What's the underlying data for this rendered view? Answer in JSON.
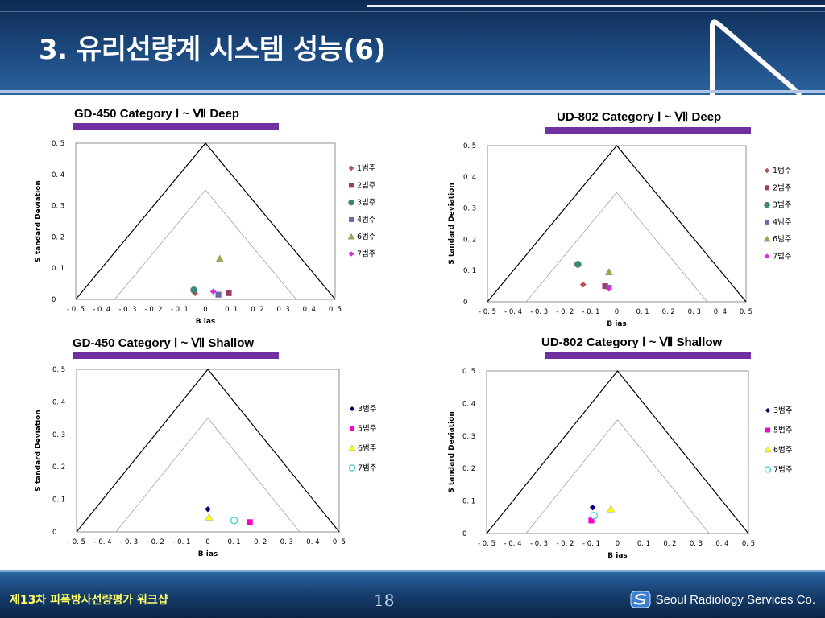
{
  "slide": {
    "title": "3. 유리선량계 시스템 성능(6)",
    "footer_left": "제13차 피폭방사선량평가 워크샵",
    "page_number": "18",
    "company": "Seoul Radiology Services Co."
  },
  "colors": {
    "header": "#1c4a80",
    "accent_bar": "#7030a0",
    "footer_text": "#ffff66"
  },
  "chart_data": [
    {
      "type": "scatter",
      "title": "GD-450 Category Ⅰ ~ Ⅶ Deep",
      "xlabel": "B ias",
      "ylabel": "S tandard Deviation",
      "xlim": [
        -0.5,
        0.5
      ],
      "ylim": [
        0,
        0.5
      ],
      "x_ticks": [
        "- 0. 5",
        "- 0. 4",
        "- 0. 3",
        "- 0. 2",
        "- 0. 1",
        "0",
        "0. 1",
        "0. 2",
        "0. 3",
        "0. 4",
        "0. 5"
      ],
      "y_ticks": [
        "0",
        "0. 1",
        "0. 2",
        "0. 3",
        "0. 4",
        "0. 5"
      ],
      "series": [
        {
          "name": "1범주",
          "color": "#c0504d",
          "marker": "diamond",
          "points": [
            [
              -0.04,
              0.02
            ]
          ]
        },
        {
          "name": "2범주",
          "color": "#9b3b6a",
          "marker": "square",
          "points": [
            [
              0.09,
              0.02
            ]
          ]
        },
        {
          "name": "3범주",
          "color": "#3b8a78",
          "marker": "circle",
          "points": [
            [
              -0.045,
              0.03
            ]
          ]
        },
        {
          "name": "4범주",
          "color": "#6a6aa8",
          "marker": "square",
          "points": [
            [
              0.05,
              0.015
            ]
          ]
        },
        {
          "name": "6범주",
          "color": "#93ad48",
          "marker": "triangle",
          "points": [
            [
              0.055,
              0.13
            ]
          ]
        },
        {
          "name": "7범주",
          "color": "#ee22ee",
          "marker": "diamond",
          "points": [
            [
              0.03,
              0.025
            ]
          ]
        }
      ]
    },
    {
      "type": "scatter",
      "title": "UD-802 Category Ⅰ ~ Ⅶ Deep",
      "xlabel": "B ias",
      "ylabel": "S tandard Deviation",
      "xlim": [
        -0.5,
        0.5
      ],
      "ylim": [
        0,
        0.5
      ],
      "x_ticks": [
        "- 0. 5",
        "- 0. 4",
        "- 0. 3",
        "- 0. 2",
        "- 0. 1",
        "0",
        "0. 1",
        "0. 2",
        "0. 3",
        "0. 4",
        "0. 5"
      ],
      "y_ticks": [
        "0",
        "0. 1",
        "0. 2",
        "0. 3",
        "0. 4",
        "0. 5"
      ],
      "series": [
        {
          "name": "1범주",
          "color": "#c0504d",
          "marker": "diamond",
          "points": [
            [
              -0.13,
              0.055
            ]
          ]
        },
        {
          "name": "2범주",
          "color": "#9b3b6a",
          "marker": "square",
          "points": [
            [
              -0.045,
              0.05
            ]
          ]
        },
        {
          "name": "3범주",
          "color": "#3b8a78",
          "marker": "circle",
          "points": [
            [
              -0.15,
              0.12
            ]
          ]
        },
        {
          "name": "4범주",
          "color": "#6a6aa8",
          "marker": "square",
          "points": [
            [
              -0.03,
              0.045
            ]
          ]
        },
        {
          "name": "6범주",
          "color": "#93ad48",
          "marker": "triangle",
          "points": [
            [
              -0.03,
              0.095
            ]
          ]
        },
        {
          "name": "7범주",
          "color": "#ee22ee",
          "marker": "diamond",
          "points": [
            [
              -0.03,
              0.042
            ]
          ]
        }
      ]
    },
    {
      "type": "scatter",
      "title": "GD-450 Category Ⅰ ~ Ⅶ Shallow",
      "xlabel": "B ias",
      "ylabel": "S tandard Deviation",
      "xlim": [
        -0.5,
        0.5
      ],
      "ylim": [
        0,
        0.5
      ],
      "x_ticks": [
        "- 0. 5",
        "- 0. 4",
        "- 0. 3",
        "- 0. 2",
        "- 0. 1",
        "0",
        "0. 1",
        "0. 2",
        "0. 3",
        "0. 4",
        "0. 5"
      ],
      "y_ticks": [
        "0",
        "0. 1",
        "0. 2",
        "0. 3",
        "0. 4",
        "0. 5"
      ],
      "series": [
        {
          "name": "3범주",
          "color": "#000080",
          "marker": "diamond",
          "points": [
            [
              0,
              0.07
            ]
          ]
        },
        {
          "name": "5범주",
          "color": "#ff00cc",
          "marker": "square",
          "points": [
            [
              0.16,
              0.03
            ]
          ]
        },
        {
          "name": "6범주",
          "color": "#ffff00",
          "marker": "triangle",
          "points": [
            [
              0.005,
              0.045
            ]
          ]
        },
        {
          "name": "7범주",
          "color": "#33cccc",
          "marker": "circle-open",
          "points": [
            [
              0.1,
              0.035
            ]
          ]
        }
      ]
    },
    {
      "type": "scatter",
      "title": "UD-802 Category Ⅰ ~ Ⅶ Shallow",
      "xlabel": "B ias",
      "ylabel": "S tandard Deviation",
      "xlim": [
        -0.5,
        0.5
      ],
      "ylim": [
        0,
        0.5
      ],
      "x_ticks": [
        "- 0. 5",
        "- 0. 4",
        "- 0. 3",
        "- 0. 2",
        "- 0. 1",
        "0",
        "0. 1",
        "0. 2",
        "0. 3",
        "0. 4",
        "0. 5"
      ],
      "y_ticks": [
        "0",
        "0. 1",
        "0. 2",
        "0. 3",
        "0. 4",
        "0. 5"
      ],
      "series": [
        {
          "name": "3범주",
          "color": "#000080",
          "marker": "diamond",
          "points": [
            [
              -0.095,
              0.08
            ]
          ]
        },
        {
          "name": "5범주",
          "color": "#ff00cc",
          "marker": "square",
          "points": [
            [
              -0.1,
              0.04
            ]
          ]
        },
        {
          "name": "6범주",
          "color": "#ffff00",
          "marker": "triangle",
          "points": [
            [
              -0.025,
              0.075
            ]
          ]
        },
        {
          "name": "7범주",
          "color": "#33cccc",
          "marker": "circle-open",
          "points": [
            [
              -0.09,
              0.055
            ]
          ]
        }
      ]
    }
  ]
}
